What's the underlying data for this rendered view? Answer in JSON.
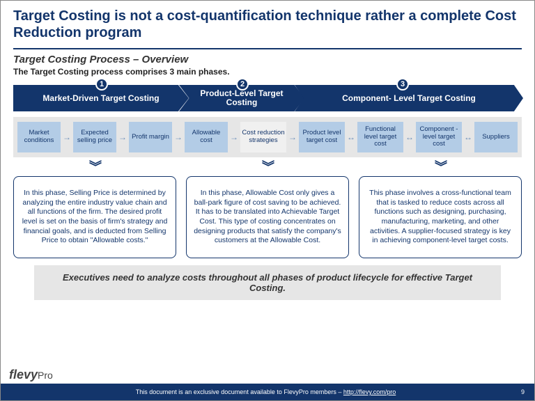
{
  "colors": {
    "navy": "#13356b",
    "lightblue": "#b3cce6",
    "strip_bg": "#e6e6e6",
    "highlight_bg": "#f0f0f0",
    "arrow": "#6a8db8",
    "text_dark": "#333333"
  },
  "title": "Target Costing is not a cost-quantification technique rather a complete Cost Reduction program",
  "subtitle": "Target Costing Process – Overview",
  "intro": "The Target Costing process comprises 3 main phases.",
  "phases": [
    {
      "num": "1",
      "label": "Market-Driven Target Costing"
    },
    {
      "num": "2",
      "label": "Product-Level Target Costing"
    },
    {
      "num": "3",
      "label": "Component- Level Target Costing"
    }
  ],
  "flow": [
    {
      "label": "Market conditions",
      "w": 62,
      "highlight": false
    },
    {
      "label": "Expected selling price",
      "w": 62,
      "highlight": false
    },
    {
      "label": "Profit margin",
      "w": 62,
      "highlight": false
    },
    {
      "label": "Allowable cost",
      "w": 62,
      "highlight": false
    },
    {
      "label": "Cost reduction strategies",
      "w": 66,
      "highlight": true
    },
    {
      "label": "Product level target cost",
      "w": 66,
      "highlight": false
    },
    {
      "label": "Functional level target cost",
      "w": 66,
      "highlight": false
    },
    {
      "label": "Component -level target cost",
      "w": 66,
      "highlight": false
    },
    {
      "label": "Suppliers",
      "w": 62,
      "highlight": false
    }
  ],
  "flow_arrows": [
    "→",
    "→",
    "→",
    "→",
    "→",
    "↔",
    "↔",
    "↔"
  ],
  "descriptions": [
    "In this phase, Selling Price is determined by analyzing the entire industry value chain and all functions of the firm.  The desired profit level is set on the basis of firm's strategy and financial goals, and is deducted from Selling Price to obtain \"Allowable costs.\"",
    "In this phase, Allowable Cost only gives a ball-park figure of cost saving to be achieved.  It has to be translated into Achievable Target Cost.  This type of costing concentrates on designing products that satisfy the company's customers at the Allowable Cost.",
    "This phase involves a cross-functional team that is tasked to reduce costs across all functions such as designing, purchasing, manufacturing, marketing, and other activities.  A supplier-focused strategy is key in achieving component-level target costs."
  ],
  "callout": "Executives need to analyze costs throughout all phases of product lifecycle for effective Target Costing.",
  "footer": {
    "text": "This document is an exclusive document available to FlevyPro members – ",
    "url": "http://flevy.com/pro",
    "page": "9"
  },
  "logo": {
    "brand": "flevy",
    "suffix": "Pro"
  }
}
